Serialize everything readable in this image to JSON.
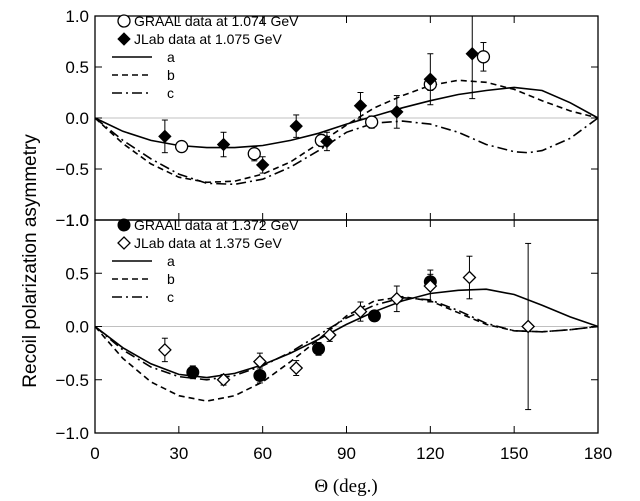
{
  "chart_data": {
    "type": "scatter",
    "xlabel": "Θ (deg.)",
    "ylabel": "Recoil polarization asymmetry",
    "xlim": [
      0,
      180
    ],
    "x_ticks": [
      0,
      30,
      60,
      90,
      120,
      150,
      180
    ],
    "ylim": [
      -1.0,
      1.0
    ],
    "y_ticks": [
      -1.0,
      -0.5,
      0.0,
      0.5,
      1.0
    ],
    "y_tick_labels": [
      "−1.0",
      "−0.5",
      "0.0",
      "0.5",
      "1.0"
    ],
    "panels": [
      {
        "position": "top",
        "legend": [
          "GRAAL data at 1.074 GeV",
          "JLab data at 1.075 GeV",
          "a",
          "b",
          "c"
        ],
        "points": [
          {
            "name": "GRAAL data at 1.074 GeV",
            "marker": "open-circle",
            "points": [
              [
                31,
                -0.28,
                0.03
              ],
              [
                57,
                -0.35,
                0.07
              ],
              [
                81,
                -0.22,
                0.06
              ],
              [
                99,
                -0.04,
                0.06
              ],
              [
                120,
                0.33,
                0.06
              ],
              [
                139,
                0.6,
                0.14
              ]
            ]
          },
          {
            "name": "JLab data at 1.075 GeV",
            "marker": "filled-diamond",
            "points": [
              [
                25,
                -0.18,
                0.16
              ],
              [
                46,
                -0.26,
                0.12
              ],
              [
                60,
                -0.46,
                0.08
              ],
              [
                72,
                -0.08,
                0.11
              ],
              [
                83,
                -0.23,
                0.09
              ],
              [
                95,
                0.12,
                0.13
              ],
              [
                108,
                0.06,
                0.16
              ],
              [
                120,
                0.38,
                0.25
              ],
              [
                135,
                0.63,
                0.44
              ]
            ]
          }
        ],
        "curves": [
          {
            "name": "a",
            "style": "solid",
            "x": [
              0,
              10,
              20,
              30,
              40,
              50,
              60,
              70,
              80,
              90,
              100,
              110,
              120,
              130,
              140,
              150,
              160,
              170,
              180
            ],
            "y": [
              0,
              -0.13,
              -0.22,
              -0.27,
              -0.29,
              -0.29,
              -0.27,
              -0.22,
              -0.15,
              -0.06,
              0.02,
              0.1,
              0.17,
              0.23,
              0.27,
              0.3,
              0.27,
              0.15,
              0
            ]
          },
          {
            "name": "b",
            "style": "dashed",
            "x": [
              0,
              10,
              20,
              30,
              40,
              50,
              60,
              70,
              80,
              90,
              100,
              110,
              120,
              130,
              140,
              150,
              160,
              170,
              180
            ],
            "y": [
              0,
              -0.25,
              -0.45,
              -0.58,
              -0.63,
              -0.62,
              -0.55,
              -0.43,
              -0.25,
              -0.07,
              0.1,
              0.22,
              0.32,
              0.37,
              0.35,
              0.28,
              0.17,
              0.07,
              0
            ]
          },
          {
            "name": "c",
            "style": "dash-dot",
            "x": [
              0,
              10,
              20,
              30,
              40,
              50,
              60,
              70,
              80,
              90,
              100,
              110,
              120,
              130,
              140,
              150,
              155,
              160,
              170,
              180
            ],
            "y": [
              0,
              -0.22,
              -0.4,
              -0.55,
              -0.64,
              -0.65,
              -0.6,
              -0.48,
              -0.32,
              -0.14,
              -0.05,
              -0.03,
              -0.06,
              -0.14,
              -0.26,
              -0.33,
              -0.34,
              -0.32,
              -0.2,
              0
            ]
          }
        ]
      },
      {
        "position": "bottom",
        "legend": [
          "GRAAL data at 1.372 GeV",
          "JLab data at 1.375 GeV",
          "a",
          "b",
          "c"
        ],
        "points": [
          {
            "name": "GRAAL data at 1.372 GeV",
            "marker": "filled-circle",
            "points": [
              [
                35,
                -0.43,
                0.06
              ],
              [
                59,
                -0.46,
                0.07
              ],
              [
                80,
                -0.21,
                0.06
              ],
              [
                100,
                0.1,
                0.05
              ],
              [
                120,
                0.42,
                0.07
              ]
            ]
          },
          {
            "name": "JLab data at 1.375 GeV",
            "marker": "open-diamond",
            "points": [
              [
                25,
                -0.22,
                0.11
              ],
              [
                46,
                -0.5,
                0.05
              ],
              [
                59,
                -0.33,
                0.08
              ],
              [
                72,
                -0.39,
                0.07
              ],
              [
                84,
                -0.08,
                0.06
              ],
              [
                95,
                0.14,
                0.09
              ],
              [
                108,
                0.26,
                0.12
              ],
              [
                120,
                0.38,
                0.15
              ],
              [
                134,
                0.46,
                0.2
              ],
              [
                155,
                0.0,
                0.78
              ]
            ]
          }
        ],
        "curves": [
          {
            "name": "a",
            "style": "solid",
            "x": [
              0,
              10,
              20,
              30,
              40,
              50,
              60,
              70,
              80,
              90,
              100,
              110,
              120,
              130,
              140,
              150,
              160,
              170,
              180
            ],
            "y": [
              0,
              -0.2,
              -0.35,
              -0.45,
              -0.48,
              -0.44,
              -0.36,
              -0.25,
              -0.12,
              0.02,
              0.14,
              0.24,
              0.31,
              0.34,
              0.35,
              0.3,
              0.2,
              0.09,
              0
            ]
          },
          {
            "name": "b",
            "style": "dashed",
            "x": [
              0,
              10,
              20,
              30,
              40,
              50,
              60,
              70,
              80,
              90,
              100,
              110,
              120,
              130,
              140,
              150,
              160,
              170,
              180
            ],
            "y": [
              0,
              -0.3,
              -0.52,
              -0.65,
              -0.7,
              -0.65,
              -0.52,
              -0.33,
              -0.12,
              0.1,
              0.24,
              0.28,
              0.24,
              0.13,
              0.02,
              -0.04,
              -0.05,
              -0.03,
              0
            ]
          },
          {
            "name": "c",
            "style": "dash-dot",
            "x": [
              0,
              10,
              20,
              30,
              40,
              50,
              60,
              70,
              80,
              90,
              100,
              110,
              120,
              130,
              140,
              150,
              160,
              170,
              180
            ],
            "y": [
              0,
              -0.22,
              -0.38,
              -0.47,
              -0.5,
              -0.46,
              -0.37,
              -0.24,
              -0.08,
              0.08,
              0.2,
              0.27,
              0.25,
              0.15,
              0.03,
              -0.04,
              -0.05,
              -0.03,
              0
            ]
          }
        ]
      }
    ]
  }
}
